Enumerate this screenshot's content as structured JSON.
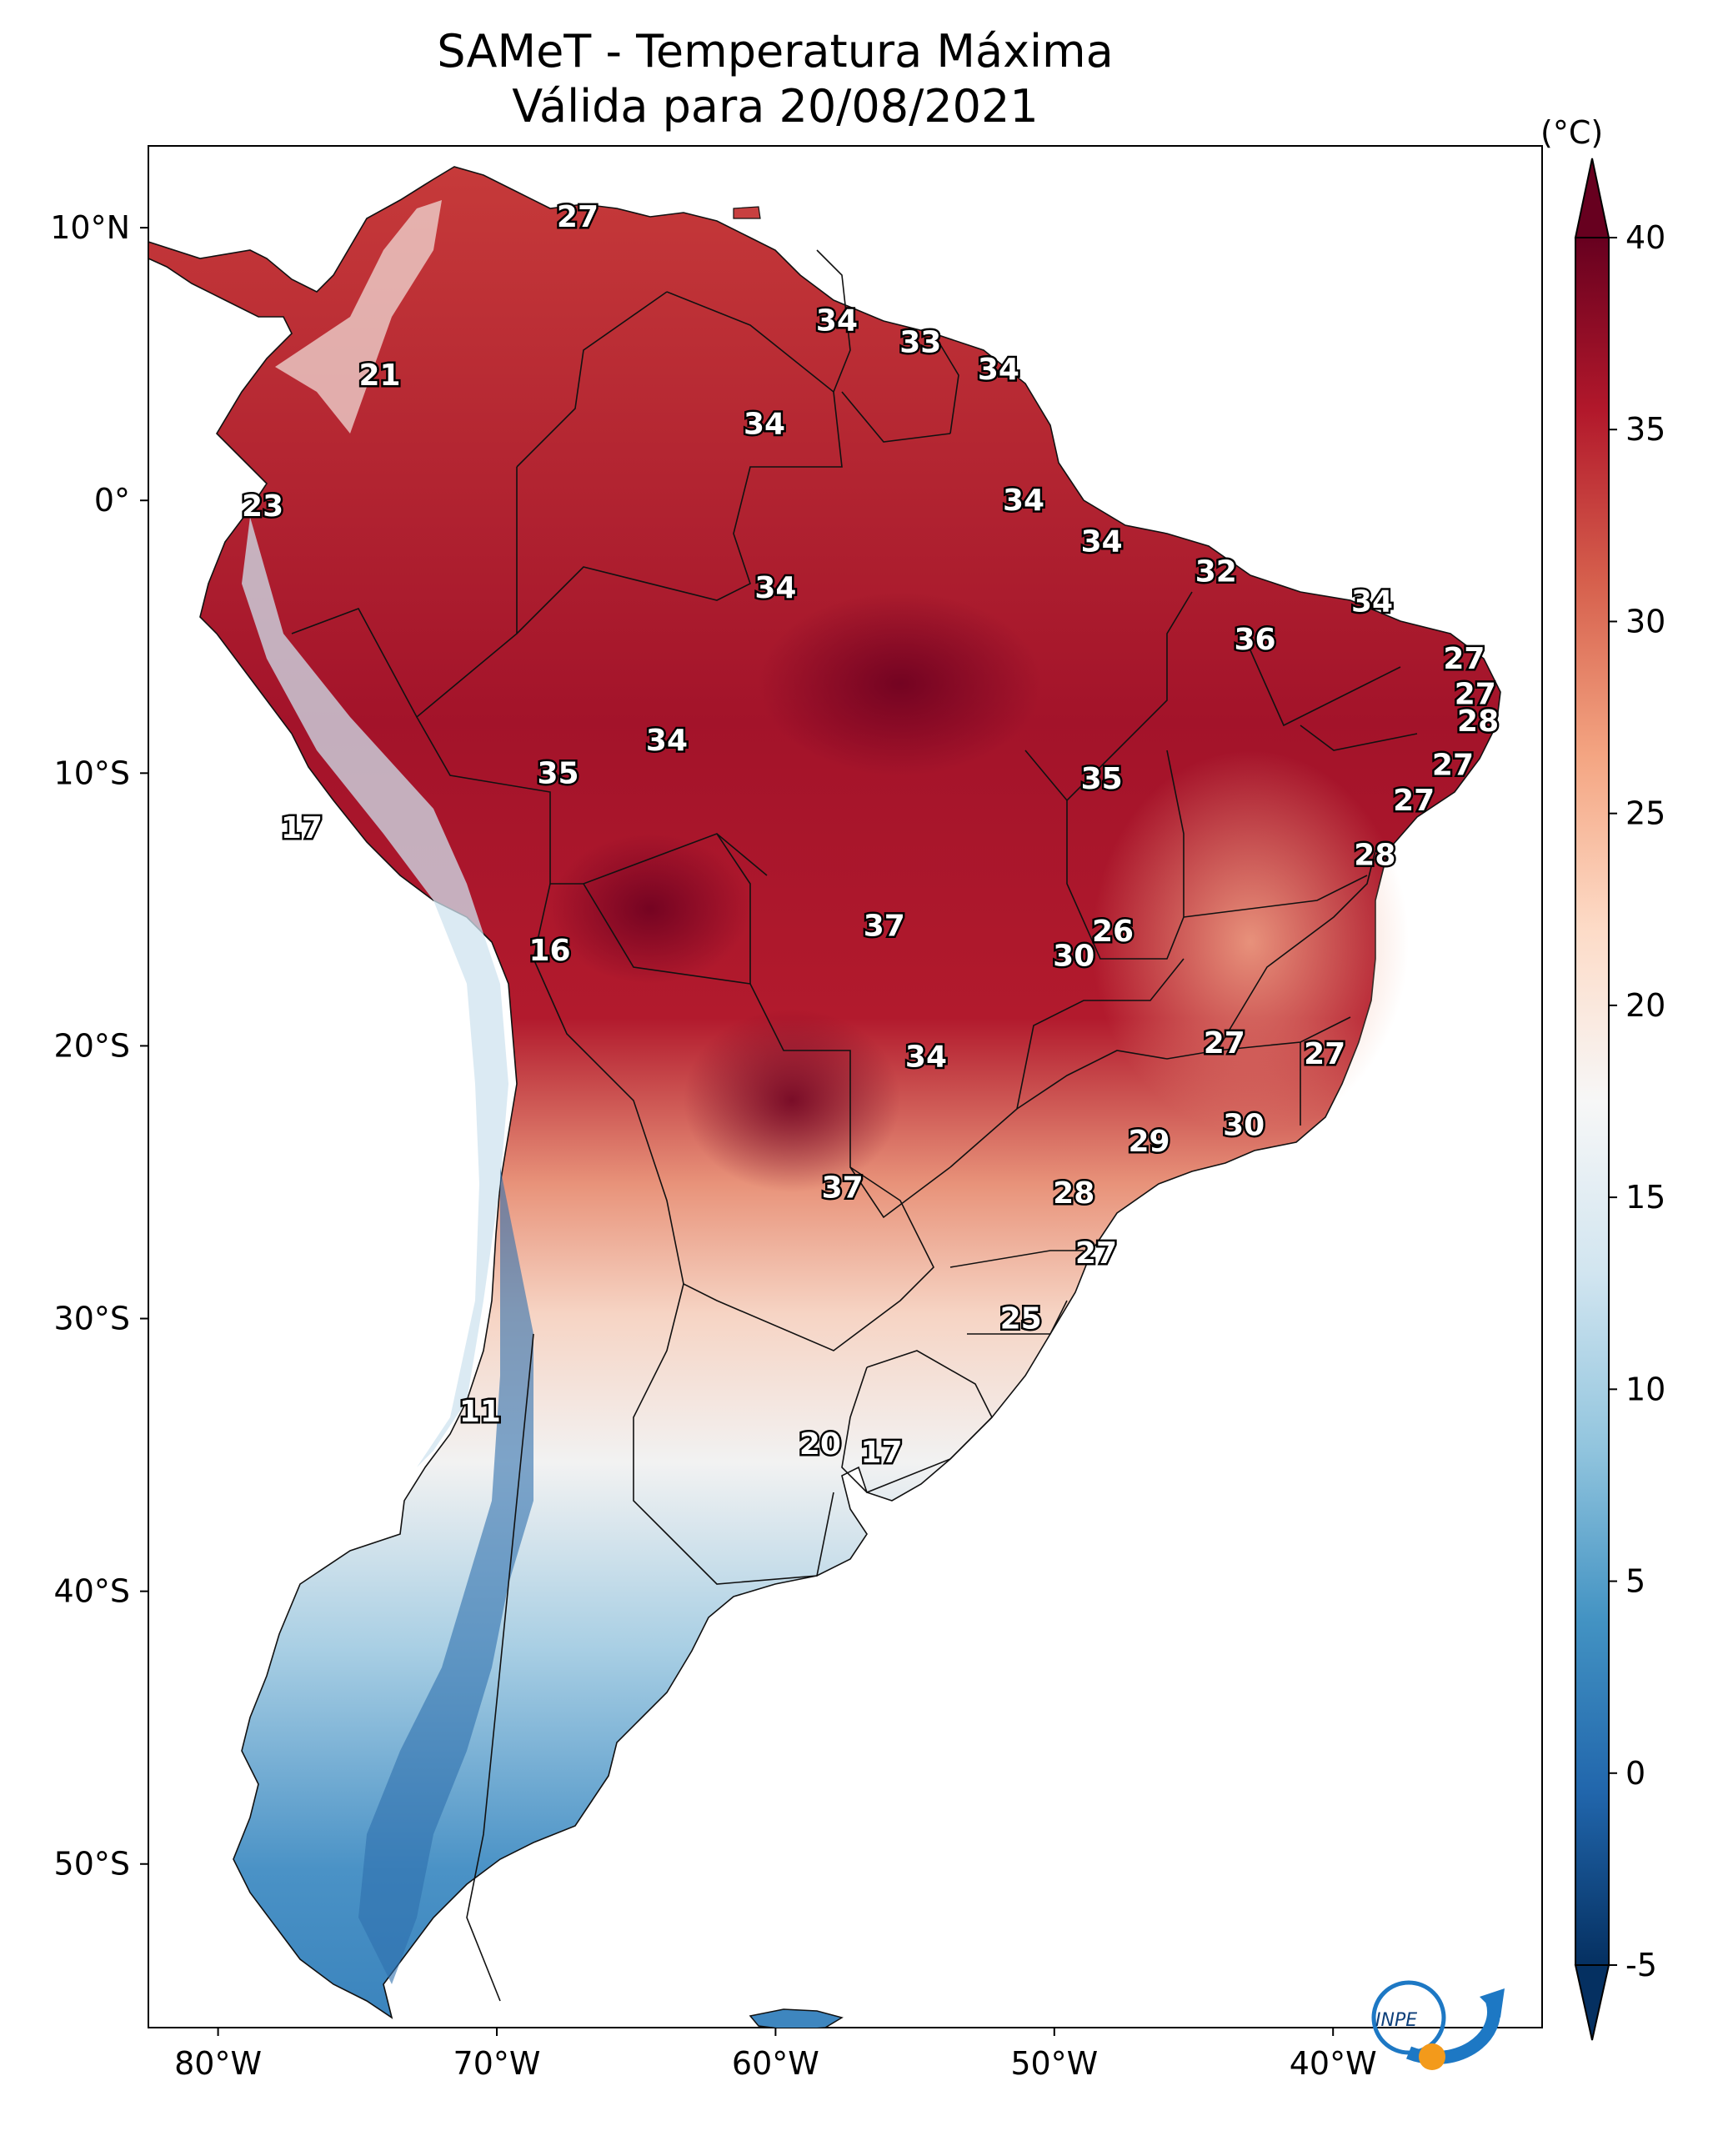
{
  "title": {
    "line1": "SAMeT - Temperatura Máxima",
    "line2": "Válida para 20/08/2021"
  },
  "map": {
    "lon_ticks": [
      "80°W",
      "70°W",
      "60°W",
      "50°W",
      "40°W"
    ],
    "lat_ticks": [
      "10°N",
      "0°",
      "10°S",
      "20°S",
      "30°S",
      "40°S",
      "50°S"
    ],
    "extent": {
      "lon": [
        -82.5,
        -32.5
      ],
      "lat": [
        -56,
        13
      ]
    }
  },
  "colorbar": {
    "unit": "(°C)",
    "ticks": [
      "40",
      "35",
      "30",
      "25",
      "20",
      "15",
      "10",
      "5",
      "0",
      "-5"
    ],
    "range": [
      -5,
      40
    ],
    "extend": "both",
    "colormap": "RdBu_r",
    "colors": [
      "#053061",
      "#2166ac",
      "#4393c3",
      "#92c5de",
      "#d1e5f0",
      "#f7f7f7",
      "#fddbc7",
      "#f4a582",
      "#d6604d",
      "#b2182b",
      "#67001f"
    ]
  },
  "station_labels": [
    {
      "value": "27",
      "lon": -67.1,
      "lat": 10.4
    },
    {
      "value": "21",
      "lon": -74.2,
      "lat": 4.6
    },
    {
      "value": "34",
      "lon": -57.8,
      "lat": 6.6
    },
    {
      "value": "33",
      "lon": -54.8,
      "lat": 5.8
    },
    {
      "value": "34",
      "lon": -52.0,
      "lat": 4.8
    },
    {
      "value": "34",
      "lon": -60.4,
      "lat": 2.8
    },
    {
      "value": "23",
      "lon": -78.4,
      "lat": -0.2
    },
    {
      "value": "34",
      "lon": -51.1,
      "lat": 0.0
    },
    {
      "value": "34",
      "lon": -48.3,
      "lat": -1.5
    },
    {
      "value": "32",
      "lon": -44.2,
      "lat": -2.6
    },
    {
      "value": "34",
      "lon": -38.6,
      "lat": -3.7
    },
    {
      "value": "34",
      "lon": -60.0,
      "lat": -3.2
    },
    {
      "value": "36",
      "lon": -42.8,
      "lat": -5.1
    },
    {
      "value": "27",
      "lon": -35.3,
      "lat": -5.8
    },
    {
      "value": "27",
      "lon": -34.9,
      "lat": -7.1
    },
    {
      "value": "28",
      "lon": -34.8,
      "lat": -8.1
    },
    {
      "value": "34",
      "lon": -63.9,
      "lat": -8.8
    },
    {
      "value": "35",
      "lon": -67.8,
      "lat": -10.0
    },
    {
      "value": "35",
      "lon": -48.3,
      "lat": -10.2
    },
    {
      "value": "27",
      "lon": -35.7,
      "lat": -9.7
    },
    {
      "value": "27",
      "lon": -37.1,
      "lat": -11.0
    },
    {
      "value": "17",
      "lon": -77.0,
      "lat": -12.0
    },
    {
      "value": "28",
      "lon": -38.5,
      "lat": -13.0
    },
    {
      "value": "37",
      "lon": -56.1,
      "lat": -15.6
    },
    {
      "value": "26",
      "lon": -47.9,
      "lat": -15.8
    },
    {
      "value": "30",
      "lon": -49.3,
      "lat": -16.7
    },
    {
      "value": "16",
      "lon": -68.1,
      "lat": -16.5
    },
    {
      "value": "27",
      "lon": -43.9,
      "lat": -19.9
    },
    {
      "value": "27",
      "lon": -40.3,
      "lat": -20.3
    },
    {
      "value": "34",
      "lon": -54.6,
      "lat": -20.4
    },
    {
      "value": "30",
      "lon": -43.2,
      "lat": -22.9
    },
    {
      "value": "29",
      "lon": -46.6,
      "lat": -23.5
    },
    {
      "value": "37",
      "lon": -57.6,
      "lat": -25.2
    },
    {
      "value": "28",
      "lon": -49.3,
      "lat": -25.4
    },
    {
      "value": "27",
      "lon": -48.5,
      "lat": -27.6
    },
    {
      "value": "25",
      "lon": -51.2,
      "lat": -30.0
    },
    {
      "value": "11",
      "lon": -70.6,
      "lat": -33.4
    },
    {
      "value": "20",
      "lon": -58.4,
      "lat": -34.6
    },
    {
      "value": "17",
      "lon": -56.2,
      "lat": -34.9
    }
  ],
  "logo": {
    "text": "INPE"
  }
}
